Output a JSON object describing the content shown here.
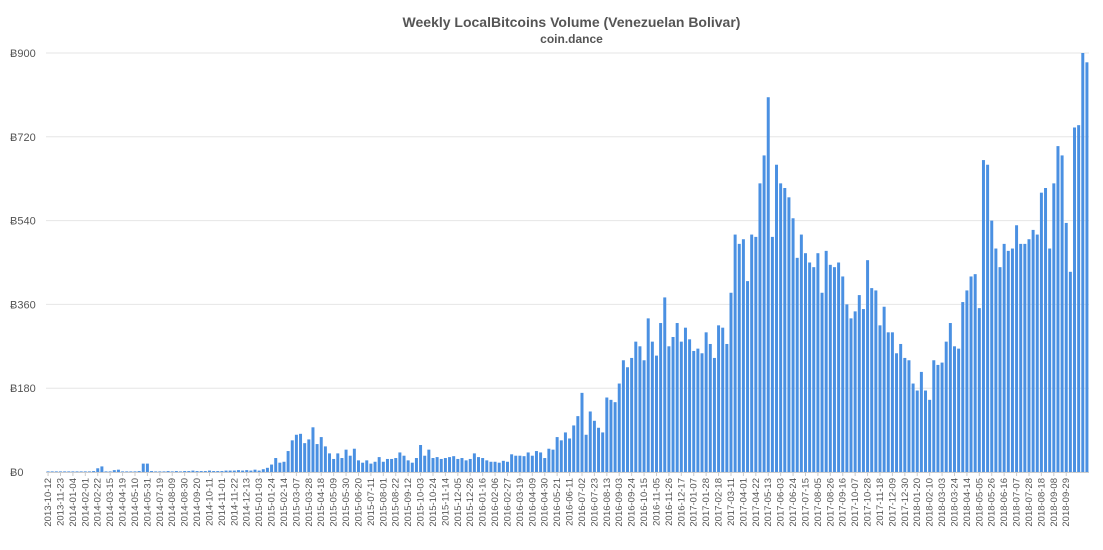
{
  "chart_data": {
    "type": "bar",
    "title": "Weekly LocalBitcoins Volume (Venezuelan Bolivar)",
    "subtitle": "coin.dance",
    "xlabel": "",
    "ylabel": "",
    "currency_symbol": "Ƀ",
    "ylim": [
      0,
      900
    ],
    "y_ticks": [
      0,
      180,
      360,
      540,
      720,
      900
    ],
    "y_tick_labels": [
      "Ƀ0",
      "Ƀ180",
      "Ƀ360",
      "Ƀ540",
      "Ƀ720",
      "Ƀ900"
    ],
    "grid": true,
    "legend": "none",
    "bar_color": "#4a90e2",
    "x_start_week": "2013-10-12",
    "x_tick_labels": [
      "2013-10-12",
      "2013-11-23",
      "2014-01-04",
      "2014-02-01",
      "2014-02-22",
      "2014-03-15",
      "2014-04-19",
      "2014-05-10",
      "2014-05-31",
      "2014-07-19",
      "2014-08-09",
      "2014-08-30",
      "2014-09-20",
      "2014-10-11",
      "2014-11-01",
      "2014-11-22",
      "2014-12-13",
      "2015-01-03",
      "2015-01-24",
      "2015-02-14",
      "2015-03-07",
      "2015-03-28",
      "2015-04-18",
      "2015-05-09",
      "2015-05-30",
      "2015-06-20",
      "2015-07-11",
      "2015-08-01",
      "2015-08-22",
      "2015-09-12",
      "2015-10-03",
      "2015-10-24",
      "2015-11-14",
      "2015-12-05",
      "2015-12-26",
      "2016-01-16",
      "2016-02-06",
      "2016-02-27",
      "2016-03-19",
      "2016-04-09",
      "2016-04-30",
      "2016-05-21",
      "2016-06-11",
      "2016-07-02",
      "2016-07-23",
      "2016-08-13",
      "2016-09-03",
      "2016-09-24",
      "2016-10-15",
      "2016-11-05",
      "2016-11-26",
      "2016-12-17",
      "2017-01-07",
      "2017-01-28",
      "2017-02-18",
      "2017-03-11",
      "2017-04-01",
      "2017-04-22",
      "2017-05-13",
      "2017-06-03",
      "2017-06-24",
      "2017-07-15",
      "2017-08-05",
      "2017-08-26",
      "2017-09-16",
      "2017-10-07",
      "2017-10-28",
      "2017-11-18",
      "2017-12-09",
      "2017-12-30",
      "2018-01-20",
      "2018-02-10",
      "2018-03-03",
      "2018-03-24",
      "2018-04-14",
      "2018-05-05",
      "2018-05-26",
      "2018-06-16",
      "2018-07-07",
      "2018-07-28",
      "2018-08-18",
      "2018-09-08",
      "2018-09-29"
    ],
    "values": [
      1,
      1,
      1,
      1,
      1,
      1,
      1,
      1,
      1,
      1,
      1,
      2,
      8,
      12,
      1,
      1,
      4,
      5,
      1,
      1,
      1,
      1,
      2,
      18,
      18,
      2,
      1,
      1,
      1,
      2,
      1,
      2,
      1,
      2,
      2,
      3,
      2,
      2,
      2,
      3,
      2,
      2,
      2,
      3,
      3,
      3,
      4,
      3,
      4,
      3,
      5,
      3,
      6,
      9,
      16,
      30,
      20,
      22,
      45,
      68,
      80,
      82,
      62,
      70,
      96,
      60,
      75,
      55,
      40,
      28,
      40,
      30,
      48,
      35,
      50,
      25,
      20,
      25,
      18,
      22,
      32,
      22,
      28,
      28,
      30,
      42,
      35,
      25,
      20,
      30,
      58,
      35,
      48,
      30,
      32,
      28,
      30,
      32,
      34,
      28,
      30,
      25,
      28,
      40,
      32,
      30,
      25,
      22,
      22,
      20,
      24,
      22,
      38,
      35,
      35,
      34,
      42,
      35,
      45,
      42,
      30,
      50,
      48,
      75,
      68,
      85,
      72,
      100,
      120,
      170,
      80,
      130,
      110,
      95,
      85,
      160,
      155,
      150,
      190,
      240,
      225,
      245,
      280,
      270,
      240,
      330,
      280,
      250,
      320,
      375,
      270,
      290,
      320,
      280,
      310,
      285,
      260,
      265,
      255,
      300,
      275,
      245,
      315,
      310,
      275,
      385,
      510,
      490,
      500,
      410,
      510,
      505,
      620,
      680,
      805,
      505,
      660,
      620,
      610,
      590,
      545,
      460,
      510,
      470,
      450,
      440,
      470,
      385,
      475,
      445,
      440,
      450,
      420,
      360,
      330,
      345,
      380,
      350,
      455,
      395,
      390,
      315,
      355,
      300,
      300,
      255,
      275,
      245,
      240,
      190,
      175,
      215,
      175,
      155,
      240,
      230,
      235,
      280,
      320,
      270,
      265,
      365,
      390,
      420,
      425,
      352,
      670,
      660,
      540,
      480,
      440,
      490,
      475,
      480,
      530,
      490,
      490,
      500,
      520,
      510,
      600,
      610,
      480,
      620,
      700,
      680,
      535,
      430,
      740,
      745,
      900,
      880
    ]
  }
}
